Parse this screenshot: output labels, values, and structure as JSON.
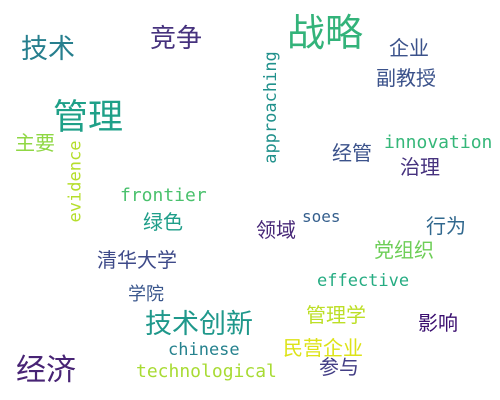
{
  "words": [
    {
      "text": "战略",
      "color": "#33b37a"
    },
    {
      "text": "竞争",
      "color": "#46327e"
    },
    {
      "text": "技术",
      "color": "#277f8e"
    },
    {
      "text": "企业",
      "color": "#3b528b"
    },
    {
      "text": "副教授",
      "color": "#3b528b"
    },
    {
      "text": "approaching",
      "color": "#21918c"
    },
    {
      "text": "管理",
      "color": "#1fa088"
    },
    {
      "text": "主要",
      "color": "#8fd744"
    },
    {
      "text": "innovation",
      "color": "#35b779"
    },
    {
      "text": "经管",
      "color": "#3b528b"
    },
    {
      "text": "治理",
      "color": "#46327e"
    },
    {
      "text": "evidence",
      "color": "#b5de2b"
    },
    {
      "text": "frontier",
      "color": "#4ac16d"
    },
    {
      "text": "绿色",
      "color": "#1f9e89"
    },
    {
      "text": "soes",
      "color": "#355f8d"
    },
    {
      "text": "领域",
      "color": "#482878"
    },
    {
      "text": "行为",
      "color": "#31688e"
    },
    {
      "text": "党组织",
      "color": "#6ece58"
    },
    {
      "text": "清华大学",
      "color": "#3e4a89"
    },
    {
      "text": "effective",
      "color": "#25ac82"
    },
    {
      "text": "学院",
      "color": "#39568c"
    },
    {
      "text": "管理学",
      "color": "#bddf26"
    },
    {
      "text": "技术创新",
      "color": "#1f988b"
    },
    {
      "text": "影响",
      "color": "#3b0f70"
    },
    {
      "text": "chinese",
      "color": "#26828e"
    },
    {
      "text": "民营企业",
      "color": "#dde318"
    },
    {
      "text": "经济",
      "color": "#482475"
    },
    {
      "text": "technological",
      "color": "#a8db34"
    },
    {
      "text": "参与",
      "color": "#433e85"
    }
  ]
}
